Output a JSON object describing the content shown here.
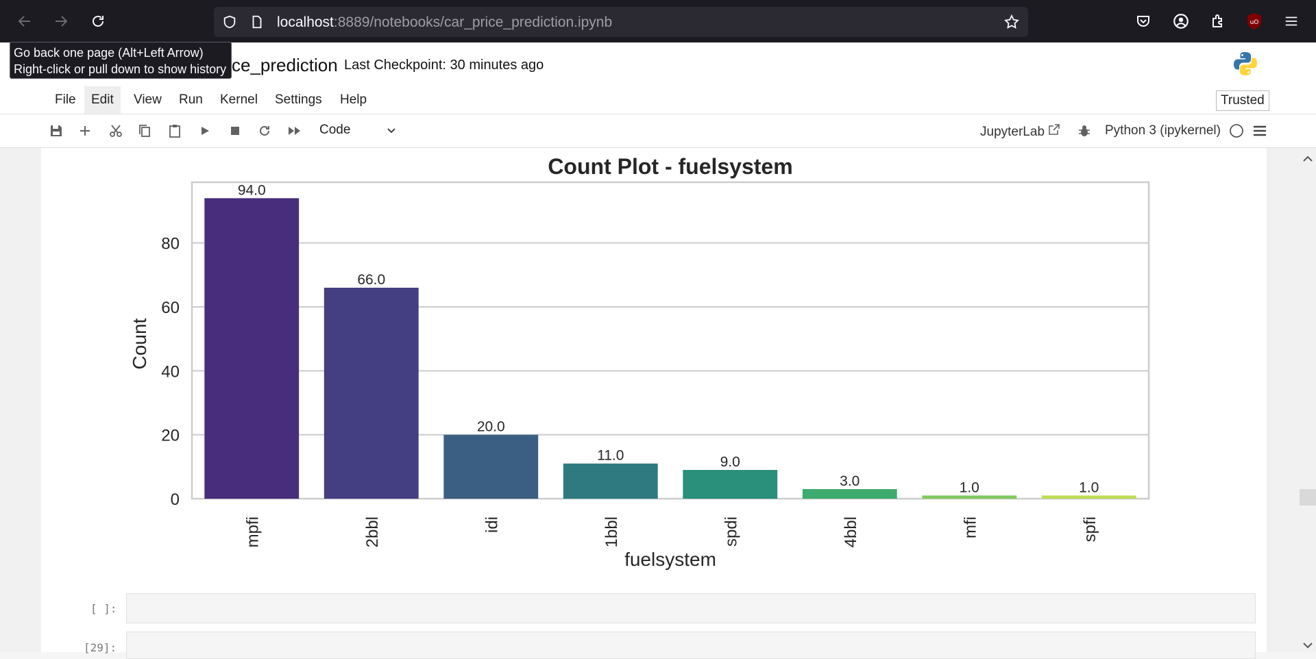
{
  "browser": {
    "url_host": "localhost",
    "url_rest": ":8889/notebooks/car_price_prediction.ipynb",
    "tooltip_line1": "Go back one page (Alt+Left Arrow)",
    "tooltip_line2": "Right-click or pull down to show history"
  },
  "header": {
    "title": "ce_prediction",
    "checkpoint": "Last Checkpoint: 30 minutes ago"
  },
  "menu": {
    "items": [
      "File",
      "Edit",
      "View",
      "Run",
      "Kernel",
      "Settings",
      "Help"
    ],
    "trusted": "Trusted"
  },
  "toolbar": {
    "cell_type": "Code",
    "jupyterlab_label": "JupyterLab",
    "kernel": "Python 3 (ipykernel)"
  },
  "chart_data": {
    "type": "bar",
    "title": "Count Plot - fuelsystem",
    "xlabel": "fuelsystem",
    "ylabel": "Count",
    "categories": [
      "mpfi",
      "2bbl",
      "idi",
      "1bbl",
      "spdi",
      "4bbl",
      "mfi",
      "spfi"
    ],
    "values": [
      94,
      66,
      20,
      11,
      9,
      3,
      1,
      1
    ],
    "data_labels": [
      "94.0",
      "66.0",
      "20.0",
      "11.0",
      "9.0",
      "3.0",
      "1.0",
      "1.0"
    ],
    "ylim": [
      0,
      99
    ],
    "yticks": [
      0,
      20,
      40,
      60,
      80
    ],
    "grid": "horizontal",
    "colors": [
      "#472d7b",
      "#443e83",
      "#3b5f83",
      "#2f7a80",
      "#2a8f7b",
      "#3daa6e",
      "#82c85f",
      "#bede54"
    ]
  },
  "cells": [
    {
      "prompt": "[ ]:"
    },
    {
      "prompt": "[29]:"
    }
  ]
}
